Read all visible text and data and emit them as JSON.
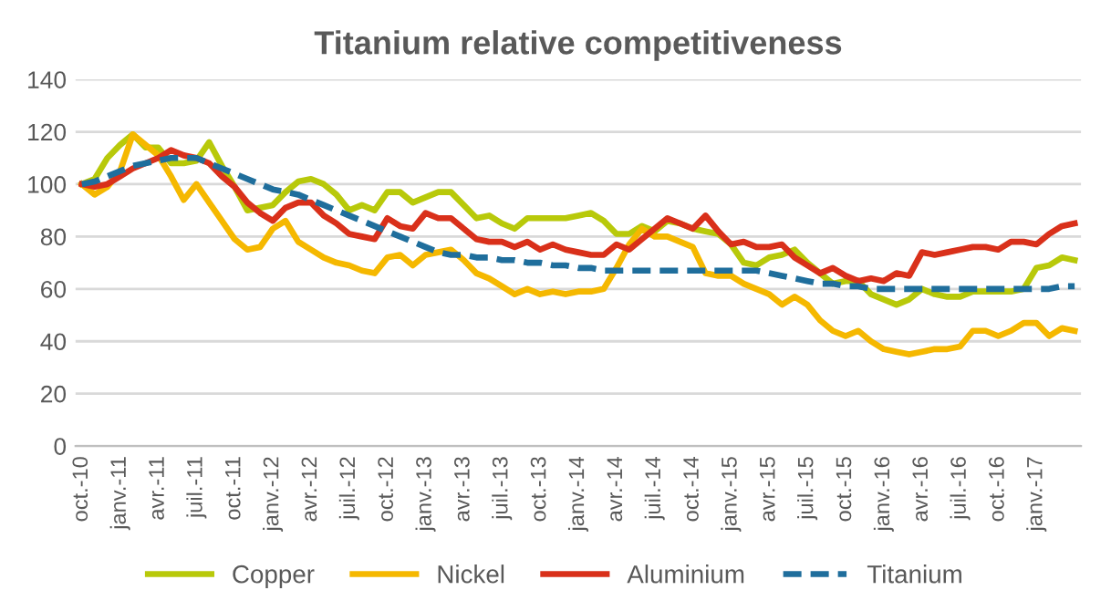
{
  "chart_data": {
    "type": "line",
    "title": "Titanium relative competitiveness",
    "categories": [
      "oct.-10",
      null,
      null,
      "janv.-11",
      null,
      null,
      "avr.-11",
      null,
      null,
      "juil.-11",
      null,
      null,
      "oct.-11",
      null,
      null,
      "janv.-12",
      null,
      null,
      "avr.-12",
      null,
      null,
      "juil.-12",
      null,
      null,
      "oct.-12",
      null,
      null,
      "janv.-13",
      null,
      null,
      "avr.-13",
      null,
      null,
      "juil.-13",
      null,
      null,
      "oct.-13",
      null,
      null,
      "janv.-14",
      null,
      null,
      "avr.-14",
      null,
      null,
      "juil.-14",
      null,
      null,
      "oct.-14",
      null,
      null,
      "janv.-15",
      null,
      null,
      "avr.-15",
      null,
      null,
      "juil.-15",
      null,
      null,
      "oct.-15",
      null,
      null,
      "janv.-16",
      null,
      null,
      "avr.-16",
      null,
      null,
      "juil.-16",
      null,
      null,
      "oct.-16",
      null,
      null,
      "janv.-17",
      null,
      null,
      null
    ],
    "series": [
      {
        "name": "Copper",
        "color": "#b8c90a",
        "values": [
          100,
          102,
          110,
          115,
          119,
          114,
          114,
          108,
          108,
          109,
          116,
          107,
          99,
          90,
          91,
          92,
          97,
          101,
          102,
          100,
          96,
          90,
          92,
          90,
          97,
          97,
          93,
          95,
          97,
          97,
          92,
          87,
          88,
          85,
          83,
          87,
          87,
          87,
          87,
          88,
          89,
          86,
          81,
          81,
          84,
          82,
          86,
          85,
          83,
          82,
          81,
          77,
          70,
          69,
          72,
          73,
          75,
          70,
          66,
          62,
          63,
          63,
          58,
          56,
          54,
          56,
          60,
          58,
          57,
          57,
          59,
          59,
          59,
          59,
          60,
          68,
          69,
          72,
          71
        ]
      },
      {
        "name": "Nickel",
        "color": "#f5b800",
        "values": [
          100,
          96,
          99,
          105,
          119,
          115,
          111,
          103,
          94,
          100,
          93,
          86,
          79,
          75,
          76,
          83,
          86,
          78,
          75,
          72,
          70,
          69,
          67,
          66,
          72,
          73,
          69,
          73,
          74,
          75,
          71,
          66,
          64,
          61,
          58,
          60,
          58,
          59,
          58,
          59,
          59,
          60,
          68,
          77,
          83,
          80,
          80,
          78,
          76,
          66,
          65,
          65,
          62,
          60,
          58,
          54,
          57,
          54,
          48,
          44,
          42,
          44,
          40,
          37,
          36,
          35,
          36,
          37,
          37,
          38,
          44,
          44,
          42,
          44,
          47,
          47,
          42,
          45,
          44
        ]
      },
      {
        "name": "Aluminium",
        "color": "#d9301a",
        "values": [
          100,
          99,
          100,
          103,
          106,
          108,
          110,
          113,
          111,
          110,
          108,
          103,
          99,
          93,
          89,
          86,
          91,
          93,
          93,
          88,
          85,
          81,
          80,
          79,
          87,
          84,
          83,
          89,
          87,
          87,
          83,
          79,
          78,
          78,
          76,
          78,
          75,
          77,
          75,
          74,
          73,
          73,
          77,
          75,
          79,
          83,
          87,
          85,
          83,
          88,
          82,
          77,
          78,
          76,
          76,
          77,
          72,
          69,
          66,
          68,
          65,
          63,
          64,
          63,
          66,
          65,
          74,
          73,
          74,
          75,
          76,
          76,
          75,
          78,
          78,
          77,
          81,
          84,
          85
        ]
      },
      {
        "name": "Titanium",
        "color": "#1f6e9c",
        "line_style": "dashed",
        "values": [
          100,
          101,
          103,
          105,
          107,
          108,
          109,
          110,
          110,
          110,
          108,
          106,
          104,
          102,
          100,
          98,
          97,
          96,
          94,
          92,
          90,
          88,
          86,
          84,
          82,
          80,
          78,
          76,
          74,
          73,
          73,
          72,
          72,
          71,
          71,
          70,
          70,
          69,
          69,
          68,
          68,
          67,
          67,
          67,
          67,
          67,
          67,
          67,
          67,
          67,
          67,
          67,
          67,
          67,
          66,
          65,
          64,
          63,
          62,
          62,
          61,
          61,
          60,
          60,
          60,
          60,
          60,
          60,
          60,
          60,
          60,
          60,
          60,
          60,
          60,
          60,
          60,
          61,
          61
        ]
      }
    ],
    "ylim": [
      0,
      140
    ],
    "yticks": [
      0,
      20,
      40,
      60,
      80,
      100,
      120,
      140
    ],
    "grid": "y",
    "legend": "bottom",
    "marker": "none",
    "line_style": "solid"
  }
}
